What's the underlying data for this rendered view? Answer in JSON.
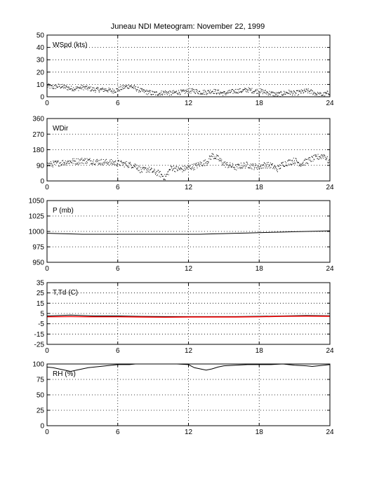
{
  "title": "Juneau NDI Meteogram:  November 22, 1999",
  "colors": {
    "axis": "#000000",
    "grid": "#000000",
    "data": "#000000",
    "dewpoint": "#ff0000"
  },
  "chart_data": [
    {
      "type": "scatter",
      "label": "WSpd (kts)",
      "xlim": [
        0,
        24
      ],
      "xticks": [
        0,
        6,
        12,
        18,
        24
      ],
      "ylim": [
        0,
        50
      ],
      "yticks": [
        0,
        10,
        20,
        30,
        40,
        50
      ],
      "grid": true,
      "series": [
        {
          "style": "dots",
          "color": "#000000",
          "x": [
            0,
            0.5,
            1,
            1.5,
            2,
            2.5,
            3,
            3.5,
            4,
            4.5,
            5,
            5.5,
            6,
            6.5,
            7,
            7.5,
            8,
            8.5,
            9,
            9.5,
            10,
            10.5,
            11,
            11.5,
            12,
            12.5,
            13,
            13.5,
            14,
            14.5,
            15,
            15.5,
            16,
            16.5,
            17,
            17.5,
            18,
            18.5,
            19,
            19.5,
            20,
            20.5,
            21,
            21.5,
            22,
            22.5,
            23,
            23.5,
            24
          ],
          "y": [
            9,
            8,
            9,
            8,
            7,
            7,
            8,
            7,
            6,
            6,
            6,
            5,
            6,
            8,
            9,
            7,
            5,
            4,
            3,
            3,
            4,
            3,
            4,
            4,
            5,
            5,
            4,
            4,
            5,
            4,
            3,
            4,
            5,
            5,
            6,
            5,
            5,
            4,
            3,
            2,
            3,
            4,
            3,
            4,
            5,
            4,
            2,
            2,
            4
          ],
          "spread": 2
        }
      ]
    },
    {
      "type": "scatter",
      "label": "WDir",
      "xlim": [
        0,
        24
      ],
      "xticks": [
        0,
        6,
        12,
        18,
        24
      ],
      "ylim": [
        0,
        360
      ],
      "yticks": [
        0,
        90,
        180,
        270,
        360
      ],
      "grid": true,
      "series": [
        {
          "style": "dots",
          "color": "#000000",
          "x": [
            0,
            0.5,
            1,
            1.5,
            2,
            2.5,
            3,
            3.5,
            4,
            4.5,
            5,
            5.5,
            6,
            6.5,
            7,
            7.5,
            8,
            8.5,
            9,
            9.5,
            10,
            10.5,
            11,
            11.5,
            12,
            12.5,
            13,
            13.5,
            14,
            14.5,
            15,
            15.5,
            16,
            16.5,
            17,
            17.5,
            18,
            18.5,
            19,
            19.5,
            20,
            20.5,
            21,
            21.5,
            22,
            22.5,
            23,
            23.5,
            24
          ],
          "y": [
            95,
            100,
            105,
            110,
            115,
            115,
            120,
            118,
            115,
            112,
            110,
            108,
            105,
            100,
            95,
            90,
            60,
            70,
            55,
            45,
            20,
            80,
            70,
            70,
            80,
            85,
            100,
            110,
            150,
            130,
            100,
            90,
            80,
            90,
            95,
            85,
            85,
            95,
            90,
            70,
            100,
            110,
            120,
            100,
            115,
            130,
            140,
            150,
            100
          ],
          "spread": 18
        }
      ]
    },
    {
      "type": "line",
      "label": "P (mb)",
      "xlim": [
        0,
        24
      ],
      "xticks": [
        0,
        6,
        12,
        18,
        24
      ],
      "ylim": [
        950,
        1050
      ],
      "yticks": [
        950,
        975,
        1000,
        1025,
        1050
      ],
      "grid": true,
      "series": [
        {
          "style": "line",
          "color": "#000000",
          "x": [
            0,
            1,
            2,
            3,
            4,
            5,
            6,
            7,
            8,
            9,
            10,
            11,
            12,
            13,
            14,
            15,
            16,
            17,
            18,
            19,
            20,
            21,
            22,
            23,
            24
          ],
          "y": [
            997,
            996.5,
            996,
            995.5,
            995.5,
            995.5,
            995.5,
            995.5,
            995.5,
            995.5,
            995.5,
            995.5,
            995.5,
            995.5,
            996,
            996.5,
            997,
            997.5,
            998,
            998.5,
            999,
            999.5,
            1000,
            1000.5,
            1001
          ]
        }
      ]
    },
    {
      "type": "line",
      "label": "T,Td (C)",
      "xlim": [
        0,
        24
      ],
      "xticks": [
        0,
        6,
        12,
        18,
        24
      ],
      "ylim": [
        -25,
        35
      ],
      "yticks": [
        -25,
        -15,
        -5,
        5,
        15,
        25,
        35
      ],
      "grid": true,
      "series": [
        {
          "style": "line",
          "color": "#000000",
          "x": [
            0,
            2,
            4,
            6,
            8,
            10,
            12,
            14,
            16,
            18,
            20,
            22,
            24
          ],
          "y": [
            2.6,
            3.4,
            2.6,
            2.6,
            2.2,
            2.0,
            2.0,
            2.0,
            2.0,
            2.3,
            2.6,
            3.0,
            2.8
          ]
        },
        {
          "style": "line",
          "color": "#ff0000",
          "x": [
            0,
            2,
            4,
            6,
            8,
            10,
            12,
            14,
            16,
            18,
            20,
            22,
            24
          ],
          "y": [
            1.8,
            2.0,
            1.8,
            1.8,
            1.6,
            1.4,
            1.6,
            1.6,
            1.6,
            1.8,
            2.2,
            2.4,
            2.3
          ]
        }
      ]
    },
    {
      "type": "line",
      "label": "RH (%)",
      "xlim": [
        0,
        24
      ],
      "xticks": [
        0,
        6,
        12,
        18,
        24
      ],
      "ylim": [
        0,
        100
      ],
      "yticks": [
        0,
        25,
        50,
        75,
        100
      ],
      "grid": true,
      "series": [
        {
          "style": "line",
          "color": "#000000",
          "x": [
            0,
            0.5,
            1,
            1.5,
            2,
            2.5,
            3,
            3.5,
            4,
            4.5,
            5,
            5.5,
            6,
            6.5,
            7,
            7.5,
            8,
            9,
            10,
            11,
            12,
            12.5,
            13,
            13.5,
            14,
            14.5,
            15,
            16,
            17,
            18,
            19,
            20,
            21,
            22,
            22.5,
            23,
            23.5,
            24
          ],
          "y": [
            95,
            94,
            92,
            90,
            88,
            90,
            92,
            94,
            95,
            96,
            97,
            98,
            99,
            99,
            99,
            100,
            100,
            100,
            100,
            100,
            99,
            94,
            92,
            90,
            92,
            95,
            97,
            98,
            99,
            99,
            99,
            100,
            98,
            97,
            96,
            97,
            98,
            99
          ]
        }
      ]
    }
  ]
}
